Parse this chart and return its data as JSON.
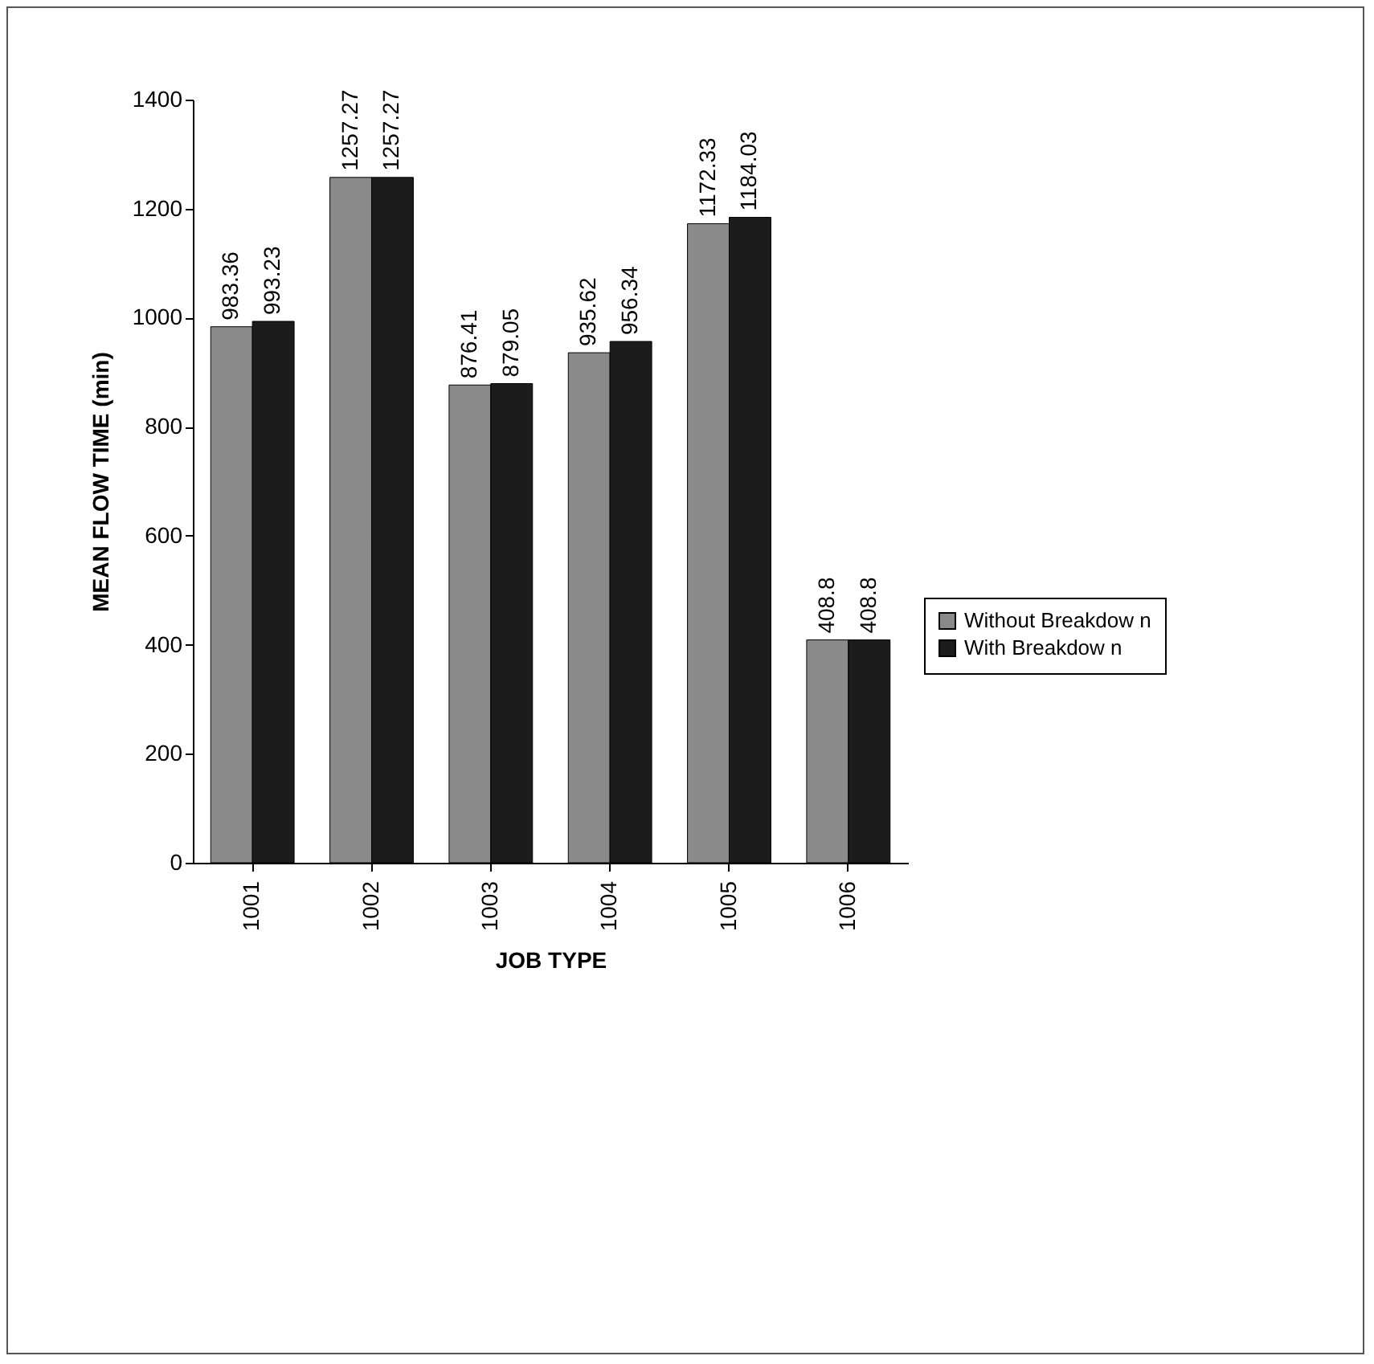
{
  "chart_data": {
    "type": "bar",
    "xlabel": "JOB TYPE",
    "ylabel": "MEAN FLOW TIME (min)",
    "categories": [
      "1001",
      "1002",
      "1003",
      "1004",
      "1005",
      "1006"
    ],
    "series": [
      {
        "name": "Without Breakdow n",
        "color": "#8a8a8a",
        "values": [
          983.36,
          1257.27,
          876.41,
          935.62,
          1172.33,
          408.8
        ]
      },
      {
        "name": "With Breakdow n",
        "color": "#1c1c1c",
        "values": [
          993.23,
          1257.27,
          879.05,
          956.34,
          1184.03,
          408.8
        ]
      }
    ],
    "ylim": [
      0,
      1400
    ],
    "yticks": [
      0,
      200,
      400,
      600,
      800,
      1000,
      1200,
      1400
    ],
    "grid": false,
    "legend": "right",
    "data_labels": true
  }
}
